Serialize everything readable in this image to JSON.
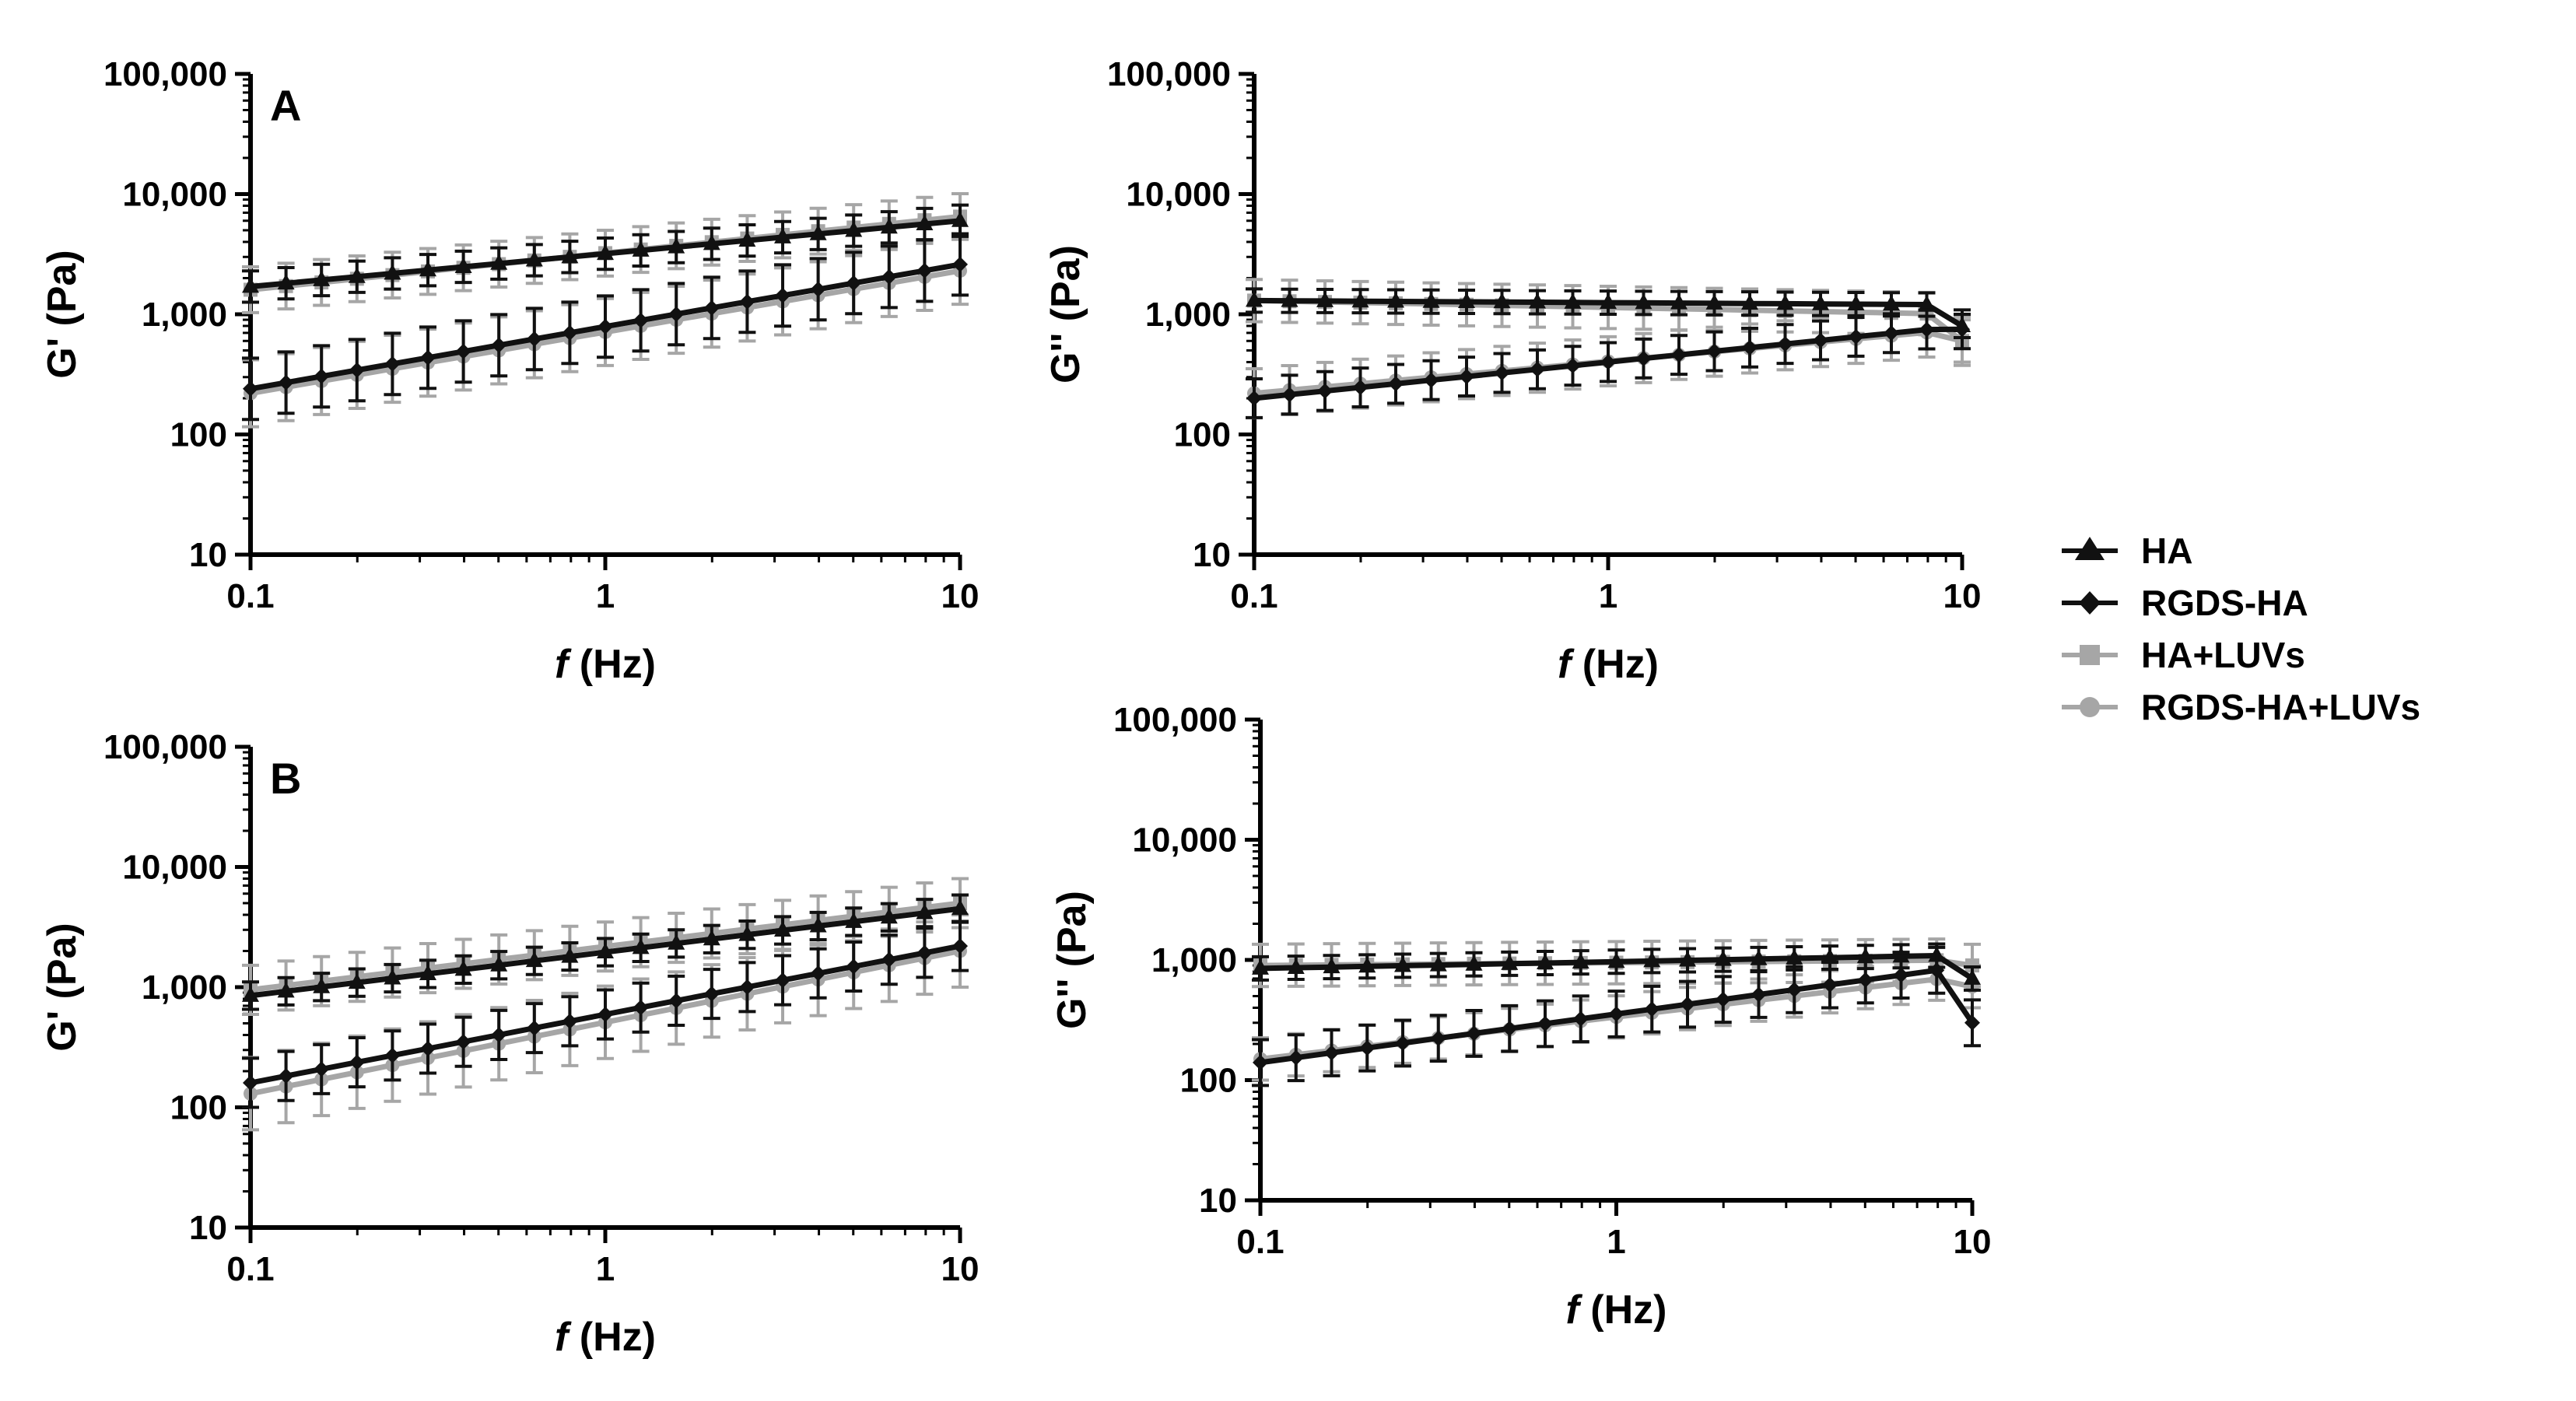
{
  "figure": {
    "legend": [
      {
        "label": "HA",
        "marker": "triangle",
        "color": "#111111"
      },
      {
        "label": "RGDS-HA",
        "marker": "diamond",
        "color": "#111111"
      },
      {
        "label": "HA+LUVs",
        "marker": "square",
        "color": "#a6a6a6"
      },
      {
        "label": "RGDS-HA+LUVs",
        "marker": "circle",
        "color": "#a6a6a6"
      }
    ]
  },
  "chart_data": [
    {
      "id": "A-storage",
      "type": "line",
      "panel_label": "A",
      "ylabel": "G' (Pa)",
      "xlabel_italic": "f",
      "xlabel_unit": " (Hz)",
      "xscale": "log",
      "yscale": "log",
      "xlim": [
        0.1,
        10
      ],
      "ylim": [
        10,
        100000
      ],
      "xticks": [
        0.1,
        1,
        10
      ],
      "xtick_labels": [
        "0.1",
        "1",
        "10"
      ],
      "yticks": [
        10,
        100,
        1000,
        10000,
        100000
      ],
      "ytick_labels": [
        "10",
        "100",
        "1,000",
        "10,000",
        "100,000"
      ],
      "series": [
        {
          "name": "HA+LUVs",
          "color": "#a6a6a6",
          "marker": "square",
          "start": 1600,
          "end": 6500,
          "err_factor": 1.55
        },
        {
          "name": "RGDS-HA+LUVs",
          "color": "#a6a6a6",
          "marker": "circle",
          "start": 220,
          "end": 2300,
          "err_factor": 1.9
        },
        {
          "name": "HA",
          "color": "#111111",
          "marker": "triangle",
          "start": 1700,
          "end": 6000,
          "err_factor": 1.35
        },
        {
          "name": "RGDS-HA",
          "color": "#111111",
          "marker": "diamond",
          "start": 240,
          "end": 2600,
          "err_factor": 1.8
        }
      ]
    },
    {
      "id": "A-loss",
      "type": "line",
      "panel_label": "",
      "ylabel": "G'' (Pa)",
      "xlabel_italic": "f",
      "xlabel_unit": " (Hz)",
      "xscale": "log",
      "yscale": "log",
      "xlim": [
        0.1,
        10
      ],
      "ylim": [
        10,
        100000
      ],
      "xticks": [
        0.1,
        1,
        10
      ],
      "xtick_labels": [
        "0.1",
        "1",
        "10"
      ],
      "yticks": [
        10,
        100,
        1000,
        10000,
        100000
      ],
      "ytick_labels": [
        "10",
        "100",
        "1,000",
        "10,000",
        "100,000"
      ],
      "series": [
        {
          "name": "HA+LUVs",
          "color": "#a6a6a6",
          "marker": "square",
          "start": 1300,
          "end": 1000,
          "err_factor": 1.5,
          "end_value": 600
        },
        {
          "name": "RGDS-HA+LUVs",
          "color": "#a6a6a6",
          "marker": "circle",
          "start": 220,
          "end": 750,
          "err_factor": 1.6,
          "end_value": 600
        },
        {
          "name": "HA",
          "color": "#111111",
          "marker": "triangle",
          "start": 1300,
          "end": 1200,
          "err_factor": 1.25,
          "end_value": 800
        },
        {
          "name": "RGDS-HA",
          "color": "#111111",
          "marker": "diamond",
          "start": 200,
          "end": 800,
          "err_factor": 1.45,
          "end_value": 750
        }
      ]
    },
    {
      "id": "B-storage",
      "type": "line",
      "panel_label": "B",
      "ylabel": "G' (Pa)",
      "xlabel_italic": "f",
      "xlabel_unit": " (Hz)",
      "xscale": "log",
      "yscale": "log",
      "xlim": [
        0.1,
        10
      ],
      "ylim": [
        10,
        100000
      ],
      "xticks": [
        0.1,
        1,
        10
      ],
      "xtick_labels": [
        "0.1",
        "1",
        "10"
      ],
      "yticks": [
        10,
        100,
        1000,
        10000,
        100000
      ],
      "ytick_labels": [
        "10",
        "100",
        "1,000",
        "10,000",
        "100,000"
      ],
      "series": [
        {
          "name": "HA+LUVs",
          "color": "#a6a6a6",
          "marker": "square",
          "start": 950,
          "end": 5000,
          "err_factor": 1.6
        },
        {
          "name": "RGDS-HA+LUVs",
          "color": "#a6a6a6",
          "marker": "circle",
          "start": 130,
          "end": 2000,
          "err_factor": 2.0
        },
        {
          "name": "HA",
          "color": "#111111",
          "marker": "triangle",
          "start": 850,
          "end": 4500,
          "err_factor": 1.3
        },
        {
          "name": "RGDS-HA",
          "color": "#111111",
          "marker": "diamond",
          "start": 160,
          "end": 2200,
          "err_factor": 1.6
        }
      ]
    },
    {
      "id": "B-loss",
      "type": "line",
      "panel_label": "",
      "ylabel": "G'' (Pa)",
      "xlabel_italic": "f",
      "xlabel_unit": " (Hz)",
      "xscale": "log",
      "yscale": "log",
      "xlim": [
        0.1,
        10
      ],
      "ylim": [
        10,
        100000
      ],
      "xticks": [
        0.1,
        1,
        10
      ],
      "xtick_labels": [
        "0.1",
        "1",
        "10"
      ],
      "yticks": [
        10,
        100,
        1000,
        10000,
        100000
      ],
      "ytick_labels": [
        "10",
        "100",
        "1,000",
        "10,000",
        "100,000"
      ],
      "series": [
        {
          "name": "HA+LUVs",
          "color": "#a6a6a6",
          "marker": "square",
          "start": 900,
          "end": 1000,
          "err_factor": 1.5,
          "end_value": 900
        },
        {
          "name": "RGDS-HA+LUVs",
          "color": "#a6a6a6",
          "marker": "circle",
          "start": 150,
          "end": 750,
          "err_factor": 1.5,
          "end_value": 600
        },
        {
          "name": "HA",
          "color": "#111111",
          "marker": "triangle",
          "start": 850,
          "end": 1100,
          "err_factor": 1.25,
          "end_value": 700
        },
        {
          "name": "RGDS-HA",
          "color": "#111111",
          "marker": "diamond",
          "start": 140,
          "end": 900,
          "err_factor": 1.55,
          "end_value": 300
        }
      ]
    }
  ]
}
